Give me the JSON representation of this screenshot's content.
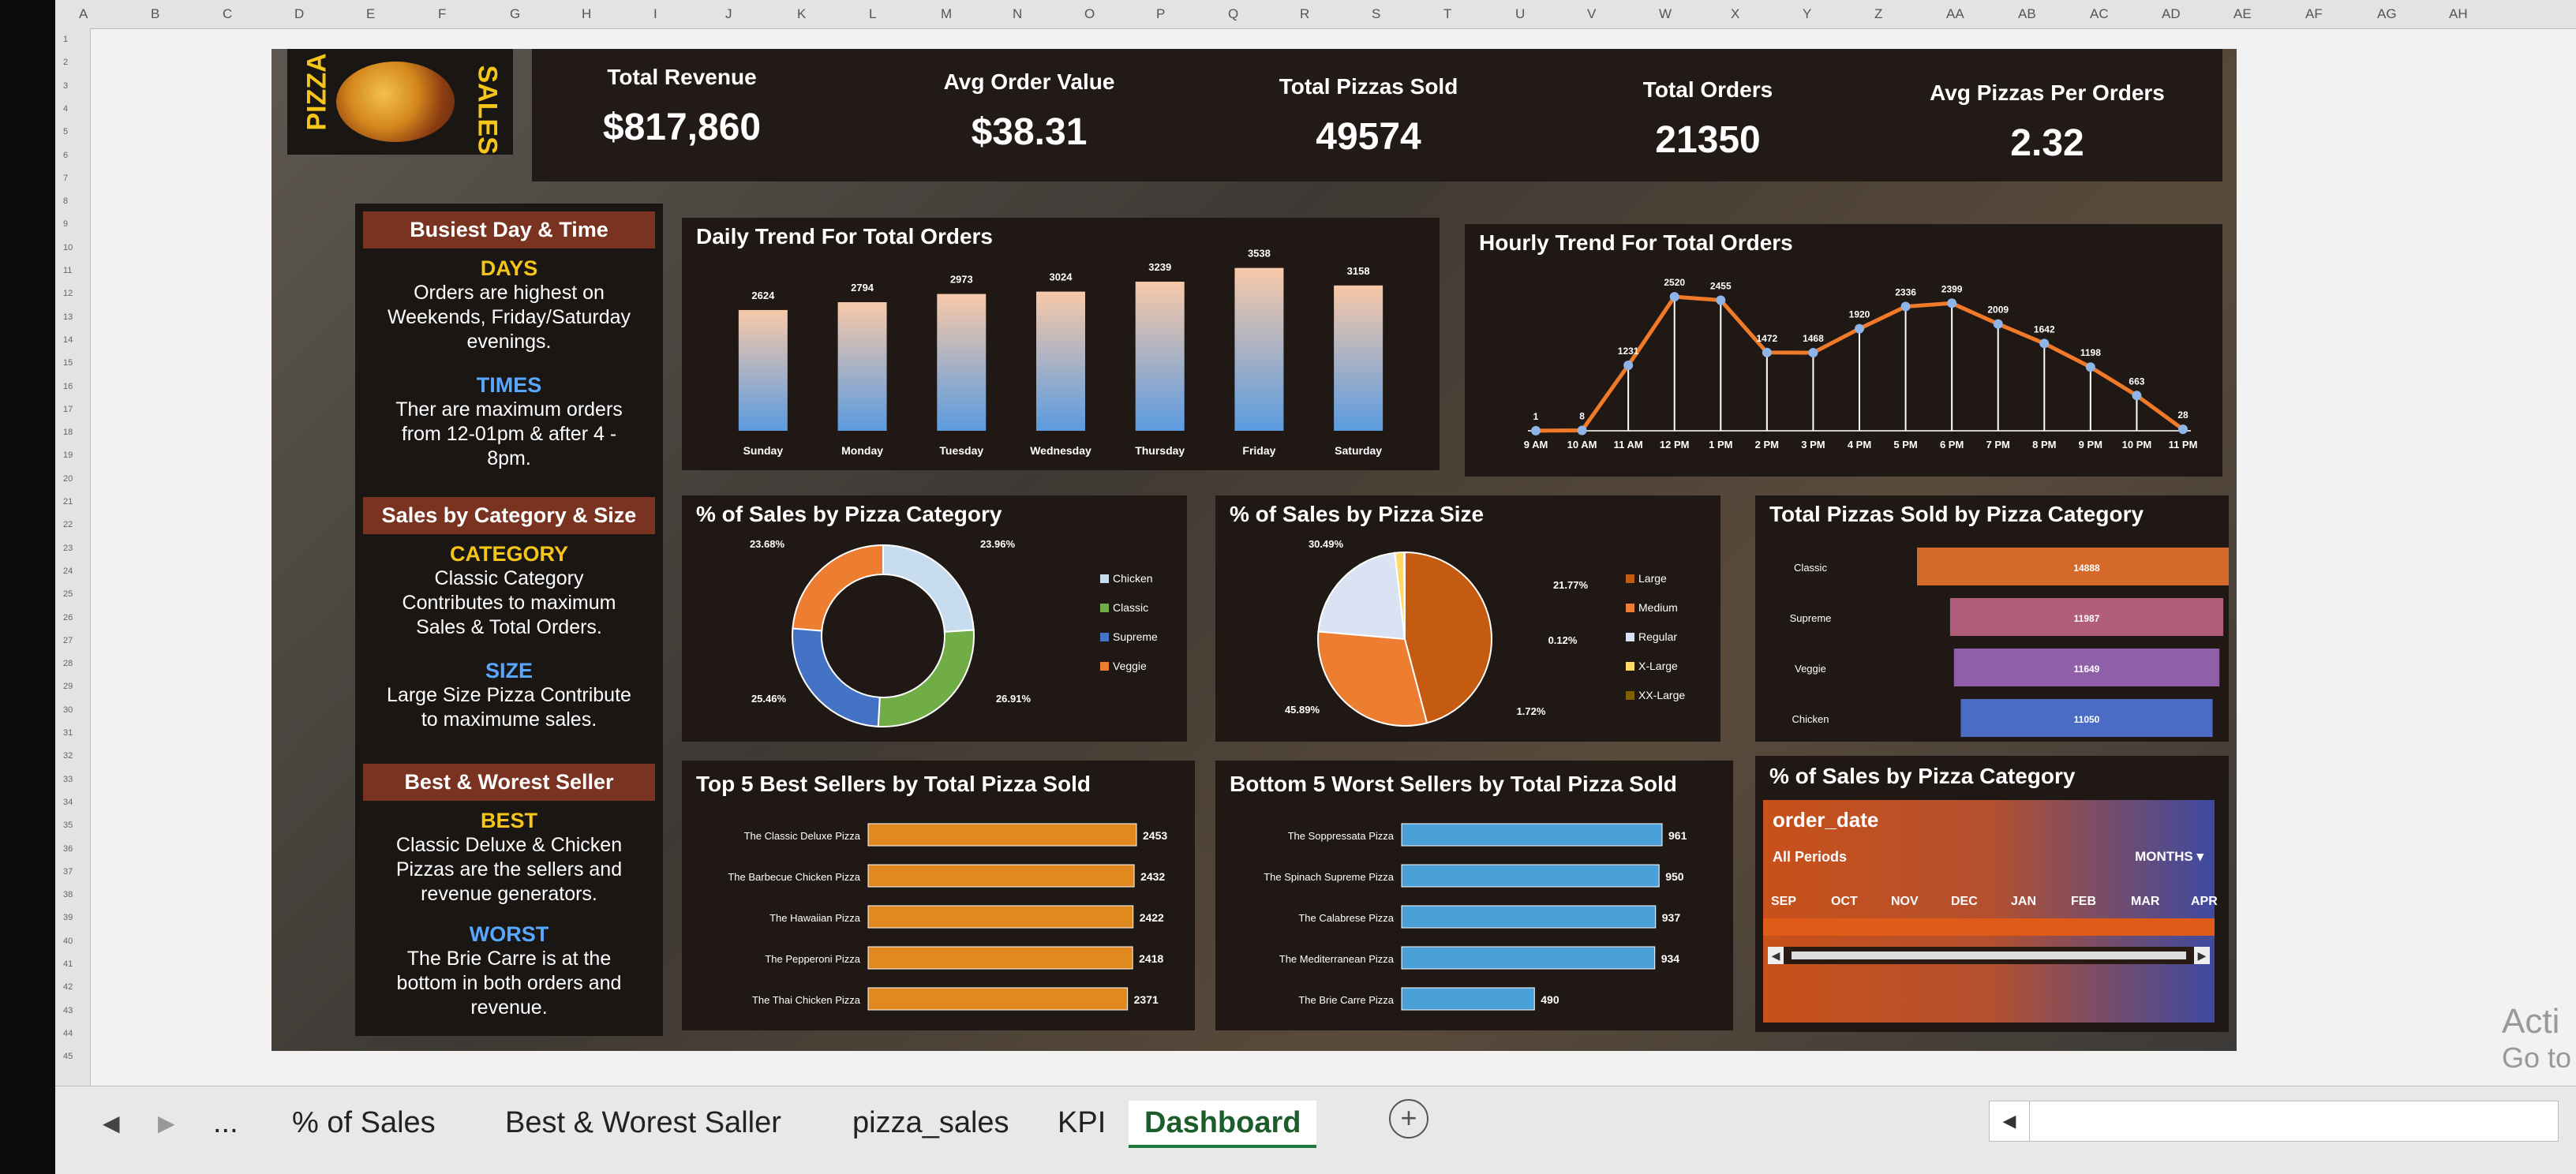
{
  "columns": [
    "A",
    "B",
    "C",
    "D",
    "E",
    "F",
    "G",
    "H",
    "I",
    "J",
    "K",
    "L",
    "M",
    "N",
    "O",
    "P",
    "Q",
    "R",
    "S",
    "T",
    "U",
    "V",
    "W",
    "X",
    "Y",
    "Z",
    "AA",
    "AB",
    "AC",
    "AD",
    "AE",
    "AF",
    "AG",
    "AH"
  ],
  "brand": {
    "left": "PIZZA",
    "right": "SALES"
  },
  "kpis": [
    {
      "label": "Total Revenue",
      "value": "$817,860"
    },
    {
      "label": "Avg Order Value",
      "value": "$38.31"
    },
    {
      "label": "Total Pizzas Sold",
      "value": "49574"
    },
    {
      "label": "Total Orders",
      "value": "21350"
    },
    {
      "label": "Avg Pizzas Per Orders",
      "value": "2.32"
    }
  ],
  "insights": {
    "busiest": {
      "title": "Busiest Day & Time",
      "h1": "DAYS",
      "t1": "Orders are highest on Weekends, Friday/Saturday evenings.",
      "h2": "TIMES",
      "t2": "Ther are maximum orders from 12-01pm & after 4 - 8pm."
    },
    "category": {
      "title": "Sales by Category & Size",
      "h1": "CATEGORY",
      "t1": "Classic Category Contributes to maximum Sales & Total Orders.",
      "h2": "SIZE",
      "t2": "Large Size Pizza Contribute to maximume sales."
    },
    "seller": {
      "title": "Best & Worest Seller",
      "h1": "BEST",
      "t1": "Classic Deluxe & Chicken Pizzas are the sellers and revenue generators.",
      "h2": "WORST",
      "t2": "The Brie Carre is at the bottom in both orders and revenue."
    }
  },
  "chart_data": [
    {
      "type": "bar",
      "title": "Daily Trend For Total Orders",
      "categories": [
        "Sunday",
        "Monday",
        "Tuesday",
        "Wednesday",
        "Thursday",
        "Friday",
        "Saturday"
      ],
      "values": [
        2624,
        2794,
        2973,
        3024,
        3239,
        3538,
        3158
      ],
      "ylim": [
        0,
        3600
      ],
      "color_top": "#f8c9a8",
      "color_bottom": "#5b9be0"
    },
    {
      "type": "line",
      "title": "Hourly Trend For Total Orders",
      "categories": [
        "9 AM",
        "10 AM",
        "11 AM",
        "12 PM",
        "1 PM",
        "2 PM",
        "3 PM",
        "4 PM",
        "5 PM",
        "6 PM",
        "7 PM",
        "8 PM",
        "9 PM",
        "10 PM",
        "11 PM"
      ],
      "values": [
        1,
        8,
        1231,
        2520,
        2455,
        1472,
        1468,
        1920,
        2336,
        2399,
        2009,
        1642,
        1198,
        663,
        28
      ],
      "ylim": [
        0,
        2700
      ],
      "color": "#f07a28"
    },
    {
      "type": "pie",
      "title": "% of Sales by Pizza Category",
      "donut": true,
      "labels": [
        "Chicken",
        "Classic",
        "Supreme",
        "Veggie"
      ],
      "values": [
        23.96,
        26.91,
        25.46,
        23.68
      ],
      "value_labels": [
        "23.96%",
        "26.91%",
        "25.46%",
        "23.68%"
      ],
      "colors": [
        "#c7dcef",
        "#70ad47",
        "#4472c4",
        "#ed7d31"
      ]
    },
    {
      "type": "pie",
      "title": "% of Sales by Pizza Size",
      "labels": [
        "Large",
        "Medium",
        "Regular",
        "X-Large",
        "XX-Large"
      ],
      "values": [
        45.89,
        30.49,
        21.77,
        1.72,
        0.12
      ],
      "value_labels": [
        "45.89%",
        "30.49%",
        "21.77%",
        "1.72%",
        "0.12%"
      ],
      "colors": [
        "#c55a11",
        "#ed7d31",
        "#dae3f3",
        "#ffd966",
        "#7f6000"
      ]
    },
    {
      "type": "bar",
      "orientation": "horizontal",
      "title": "Total Pizzas Sold by Pizza Category",
      "categories": [
        "Classic",
        "Supreme",
        "Veggie",
        "Chicken"
      ],
      "values": [
        14888,
        11987,
        11649,
        11050
      ]
    },
    {
      "type": "bar",
      "orientation": "horizontal",
      "title": "Top 5 Best Sellers by Total Pizza Sold",
      "categories": [
        "The Classic Deluxe Pizza",
        "The Barbecue Chicken Pizza",
        "The Hawaiian Pizza",
        "The Pepperoni Pizza",
        "The Thai Chicken Pizza"
      ],
      "values": [
        2453,
        2432,
        2422,
        2418,
        2371
      ],
      "color": "#e0891e"
    },
    {
      "type": "bar",
      "orientation": "horizontal",
      "title": "Bottom 5 Worst Sellers by Total Pizza Sold",
      "categories": [
        "The Soppressata Pizza",
        "The Spinach Supreme Pizza",
        "The Calabrese Pizza",
        "The Mediterranean Pizza",
        "The Brie Carre Pizza"
      ],
      "values": [
        961,
        950,
        937,
        934,
        490
      ],
      "color": "#4aa0d8"
    }
  ],
  "timeline": {
    "title": "% of Sales by Pizza Category",
    "field": "order_date",
    "periods": "All Periods",
    "unit": "MONTHS",
    "months": [
      "SEP",
      "OCT",
      "NOV",
      "DEC",
      "JAN",
      "FEB",
      "MAR",
      "APR"
    ]
  },
  "tabs": [
    "...",
    "% of Sales",
    "Best & Worest Saller",
    "pizza_sales",
    "KPI",
    "Dashboard"
  ],
  "active_tab": "Dashboard",
  "corner_text": {
    "line1": "Acti",
    "line2": "Go to"
  }
}
